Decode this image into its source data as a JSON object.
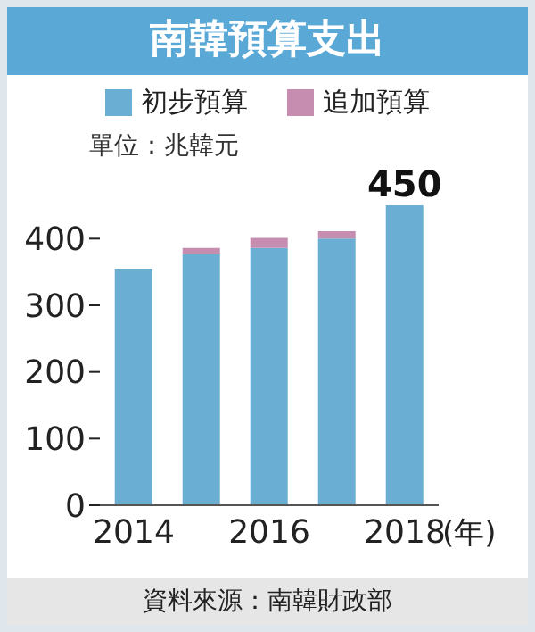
{
  "chart_data": {
    "type": "bar",
    "title": "南韓預算支出",
    "xlabel": "(年)",
    "annotations": [
      "單位：兆韓元",
      "資料來源：南韓財政部"
    ],
    "categories": [
      "2014",
      null,
      "2016",
      null,
      "2018"
    ],
    "series": [
      {
        "name": "初步預算",
        "color": "#6aaed3",
        "values": [
          355,
          377,
          386,
          400,
          450
        ],
        "value_labels": [
          null,
          null,
          null,
          null,
          "450"
        ]
      },
      {
        "name": "追加預算",
        "color": "#c68db0",
        "values": [
          null,
          9,
          15,
          11,
          null
        ]
      }
    ],
    "stacked": true,
    "ylim": [
      0,
      450
    ],
    "yticks": [
      0,
      100,
      200,
      300,
      400
    ],
    "legend": "top",
    "grid": false
  }
}
